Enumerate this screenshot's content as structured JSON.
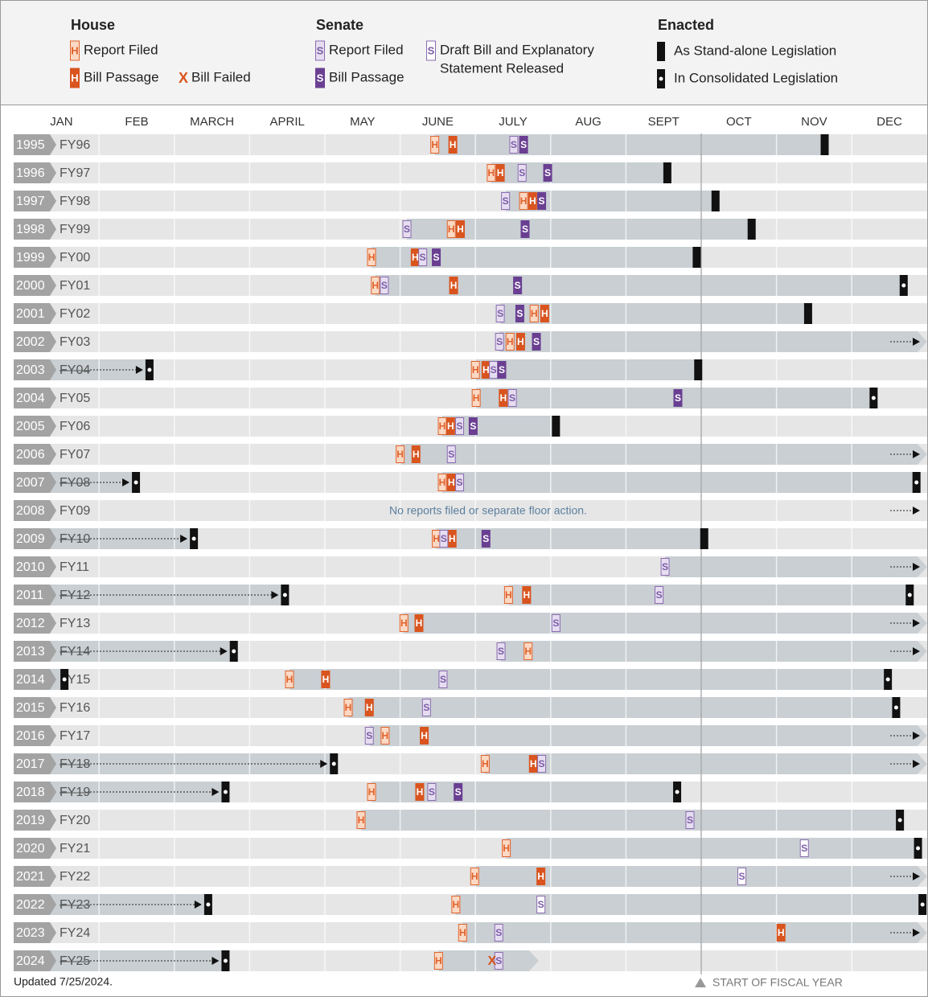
{
  "chart_data": {
    "type": "timeline",
    "xlim": [
      0,
      12
    ],
    "xticks": [
      0,
      1,
      2,
      3,
      4,
      5,
      6,
      7,
      8,
      9,
      10,
      11,
      12
    ],
    "months": [
      "JAN",
      "FEB",
      "MARCH",
      "APRIL",
      "MAY",
      "JUNE",
      "JULY",
      "AUG",
      "SEPT",
      "OCT",
      "NOV",
      "DEC"
    ],
    "fiscal_year_start": {
      "value": 9,
      "label": "START OF FISCAL YEAR"
    },
    "updated": "Updated 7/25/2024.",
    "legend": {
      "house": {
        "title": "House",
        "report": {
          "letter": "H",
          "label": "Report Filed"
        },
        "passage": {
          "letter": "H",
          "label": "Bill Passage"
        },
        "failed": {
          "letter": "X",
          "label": "Bill Failed"
        }
      },
      "senate": {
        "title": "Senate",
        "report": {
          "letter": "S",
          "label": "Report Filed"
        },
        "passage": {
          "letter": "S",
          "label": "Bill Passage"
        },
        "draft": {
          "letter": "S",
          "label": [
            "Draft Bill and Explanatory",
            "Statement Released"
          ]
        }
      },
      "enacted": {
        "title": "Enacted",
        "standalone": "As Stand-alone Legislation",
        "consolidated": "In Consolidated Legislation"
      }
    },
    "rows": [
      {
        "year": "1995",
        "fy": "FY96",
        "house_report": 5.46,
        "house_passage": 5.7,
        "senate_report": 6.51,
        "senate_passage": 6.64,
        "enacted": 10.64
      },
      {
        "year": "1996",
        "fy": "FY97",
        "house_report": 6.21,
        "house_passage": 6.33,
        "senate_report": 6.62,
        "senate_passage": 6.96,
        "enacted": 8.55
      },
      {
        "year": "1997",
        "fy": "FY98",
        "senate_report": 6.4,
        "house_report": 6.64,
        "house_passage": 6.76,
        "senate_passage": 6.88,
        "enacted": 9.19
      },
      {
        "year": "1998",
        "fy": "FY99",
        "senate_report": 5.09,
        "house_report": 5.68,
        "house_passage": 5.8,
        "senate_passage": 6.66,
        "enacted": 9.67
      },
      {
        "year": "1999",
        "fy": "FY00",
        "house_report": 4.62,
        "house_passage": 5.2,
        "senate_report": 5.3,
        "senate_passage": 5.48,
        "enacted": 8.94
      },
      {
        "year": "2000",
        "fy": "FY01",
        "house_report": 4.67,
        "senate_report": 4.79,
        "house_passage": 5.71,
        "senate_passage": 6.56,
        "enacted_consolidated": 11.69
      },
      {
        "year": "2001",
        "fy": "FY02",
        "senate_report": 6.33,
        "senate_passage": 6.59,
        "house_report": 6.78,
        "house_passage": 6.92,
        "enacted": 10.42
      },
      {
        "year": "2002",
        "fy": "FY03",
        "senate_report": 6.32,
        "house_report": 6.46,
        "house_passage": 6.6,
        "senate_passage": 6.81,
        "continues": true
      },
      {
        "year": "2003",
        "fy": "FY04",
        "prior_enacted_consolidated": 1.67,
        "house_report": 6.0,
        "house_passage": 6.14,
        "senate_report": 6.24,
        "senate_passage": 6.35,
        "enacted": 8.96
      },
      {
        "year": "2004",
        "fy": "FY05",
        "house_report": 6.01,
        "house_passage": 6.37,
        "senate_report": 6.49,
        "senate_passage": 8.69,
        "enacted_consolidated": 11.29
      },
      {
        "year": "2005",
        "fy": "FY06",
        "house_report": 5.56,
        "house_passage": 5.67,
        "senate_report": 5.79,
        "senate_passage": 5.97,
        "enacted": 7.07
      },
      {
        "year": "2006",
        "fy": "FY07",
        "house_report": 5.0,
        "house_passage": 5.21,
        "senate_report": 5.68,
        "continues": true
      },
      {
        "year": "2007",
        "fy": "FY08",
        "prior_enacted_consolidated": 1.49,
        "house_report": 5.56,
        "house_passage": 5.68,
        "senate_report": 5.79,
        "enacted_consolidated": 11.86
      },
      {
        "year": "2008",
        "fy": "FY09",
        "note": "No reports filed or separate floor action.",
        "continues": true
      },
      {
        "year": "2009",
        "fy": "FY10",
        "prior_enacted_consolidated": 2.26,
        "house_report": 5.48,
        "senate_report": 5.58,
        "house_passage": 5.69,
        "senate_passage": 6.14,
        "enacted": 9.04
      },
      {
        "year": "2010",
        "fy": "FY11",
        "senate_report": 8.52,
        "continues": true
      },
      {
        "year": "2011",
        "fy": "FY12",
        "prior_enacted_consolidated": 3.47,
        "house_report": 6.44,
        "house_passage": 6.68,
        "senate_report": 8.44,
        "enacted_consolidated": 11.77
      },
      {
        "year": "2012",
        "fy": "FY13",
        "house_report": 5.05,
        "house_passage": 5.25,
        "senate_report": 7.07,
        "continues": true
      },
      {
        "year": "2013",
        "fy": "FY14",
        "prior_enacted_consolidated": 2.79,
        "senate_report": 6.34,
        "house_report": 6.7,
        "continues": true
      },
      {
        "year": "2014",
        "fy": "FY15",
        "prior_enacted_consolidated": 0.54,
        "house_report": 3.53,
        "house_passage": 4.01,
        "senate_report": 5.57,
        "enacted_consolidated": 11.48
      },
      {
        "year": "2015",
        "fy": "FY16",
        "house_report": 4.31,
        "house_passage": 4.59,
        "senate_report": 5.35,
        "enacted_consolidated": 11.59
      },
      {
        "year": "2016",
        "fy": "FY17",
        "senate_report": 4.59,
        "house_report": 4.8,
        "house_passage": 5.32,
        "continues": true
      },
      {
        "year": "2017",
        "fy": "FY18",
        "prior_enacted_consolidated": 4.12,
        "house_report": 6.13,
        "house_passage": 6.77,
        "senate_report": 6.88,
        "continues": true
      },
      {
        "year": "2018",
        "fy": "FY19",
        "prior_enacted_consolidated": 2.68,
        "house_report": 4.62,
        "house_passage": 5.26,
        "senate_report": 5.42,
        "senate_passage": 5.77,
        "enacted_consolidated": 8.68
      },
      {
        "year": "2019",
        "fy": "FY20",
        "house_report": 4.48,
        "senate_report": 8.85,
        "enacted_consolidated": 11.64
      },
      {
        "year": "2020",
        "fy": "FY21",
        "house_report": 6.41,
        "senate_draft": 10.37,
        "enacted_consolidated": 11.88
      },
      {
        "year": "2021",
        "fy": "FY22",
        "house_report": 5.99,
        "house_passage": 6.87,
        "senate_draft": 9.54,
        "continues": true
      },
      {
        "year": "2022",
        "fy": "FY23",
        "prior_enacted_consolidated": 2.45,
        "house_report": 5.74,
        "senate_draft": 6.87,
        "enacted_consolidated": 11.94
      },
      {
        "year": "2023",
        "fy": "FY24",
        "house_report": 5.83,
        "senate_report": 6.31,
        "house_passage": 10.06,
        "continues": true
      },
      {
        "year": "2024",
        "fy": "FY25",
        "prior_enacted_consolidated": 2.68,
        "house_report": 5.51,
        "failed": 6.22,
        "senate_report": 6.31,
        "bar_end": 6.84
      }
    ]
  }
}
